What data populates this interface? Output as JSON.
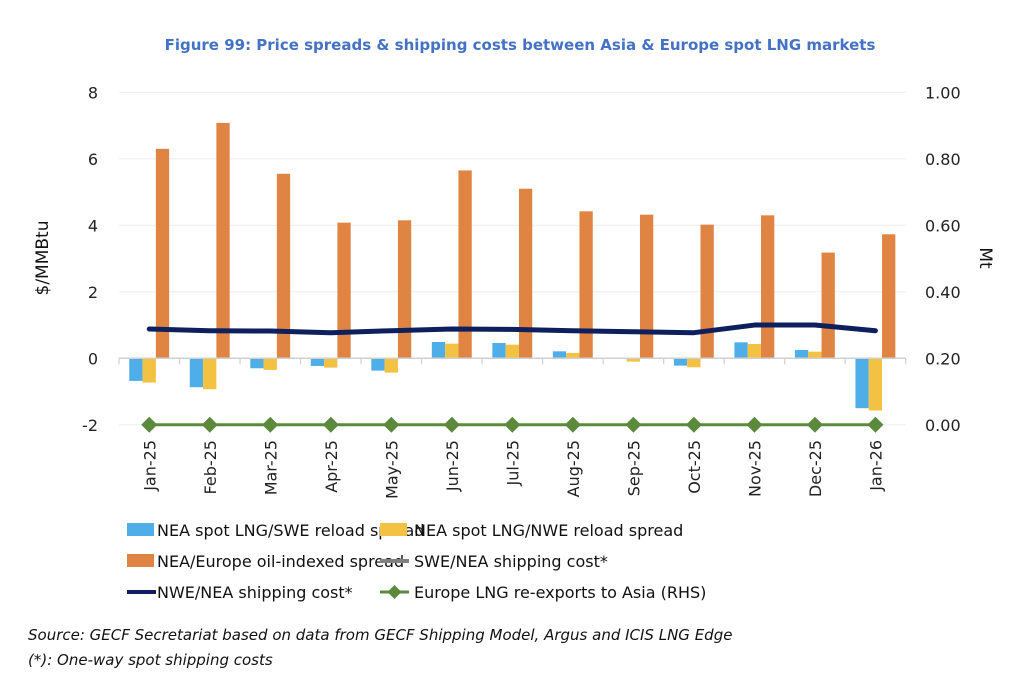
{
  "chart_data": {
    "type": "bar",
    "title": "Figure 99: Price spreads & shipping costs between Asia & Europe spot LNG markets",
    "categories": [
      "Jan-25",
      "Feb-25",
      "Mar-25",
      "Apr-25",
      "May-25",
      "Jun-25",
      "Jul-25",
      "Aug-25",
      "Sep-25",
      "Oct-25",
      "Nov-25",
      "Dec-25",
      "Jan-26"
    ],
    "ylabel": "$/MMBtu",
    "y2label": "Mt",
    "ylim": [
      -2,
      8
    ],
    "y2lim": [
      0,
      1
    ],
    "yticks": [
      "-2",
      "0",
      "2",
      "4",
      "6",
      "8"
    ],
    "y2ticks": [
      "0.00",
      "0.20",
      "0.40",
      "0.60",
      "0.80",
      "1.00"
    ],
    "grid": true,
    "legend_position": "bottom",
    "series": [
      {
        "name": "NEA spot LNG/SWE reload spread",
        "kind": "bar",
        "axis": "left",
        "color": "#4faee8",
        "values": [
          -0.68,
          -0.87,
          -0.3,
          -0.23,
          -0.37,
          0.49,
          0.46,
          0.21,
          -0.02,
          -0.22,
          0.48,
          0.25,
          -1.5
        ]
      },
      {
        "name": "NEA spot LNG/NWE reload spread",
        "kind": "bar",
        "axis": "left",
        "color": "#f4c242",
        "values": [
          -0.73,
          -0.93,
          -0.35,
          -0.28,
          -0.43,
          0.44,
          0.41,
          0.16,
          -0.1,
          -0.27,
          0.43,
          0.2,
          -1.57
        ]
      },
      {
        "name": "NEA/Europe oil-indexed spread",
        "kind": "bar",
        "axis": "left",
        "color": "#e08444",
        "values": [
          6.3,
          7.08,
          5.55,
          4.08,
          4.15,
          5.65,
          5.1,
          4.42,
          4.32,
          4.02,
          4.3,
          3.18,
          3.73
        ]
      },
      {
        "name": "SWE/NEA shipping cost*",
        "kind": "line",
        "axis": "left",
        "color": "#808080",
        "values": [
          0.88,
          0.83,
          0.82,
          0.77,
          0.83,
          0.88,
          0.87,
          0.83,
          0.8,
          0.77,
          1.0,
          1.0,
          0.83
        ]
      },
      {
        "name": "NWE/NEA shipping cost*",
        "kind": "line",
        "axis": "left",
        "color": "#0d1f5c",
        "values": [
          0.88,
          0.83,
          0.82,
          0.77,
          0.83,
          0.88,
          0.87,
          0.83,
          0.8,
          0.77,
          1.0,
          1.0,
          0.83
        ]
      },
      {
        "name": "Europe LNG re-exports to Asia (RHS)",
        "kind": "line-marker",
        "axis": "right",
        "color": "#5b8a3c",
        "values": [
          0,
          0,
          0,
          0,
          0,
          0,
          0,
          0,
          0,
          0,
          0,
          0,
          0
        ]
      }
    ]
  },
  "source": "Source: GECF Secretariat based on data from GECF Shipping Model, Argus and ICIS LNG Edge",
  "note": "(*): One-way spot shipping costs"
}
